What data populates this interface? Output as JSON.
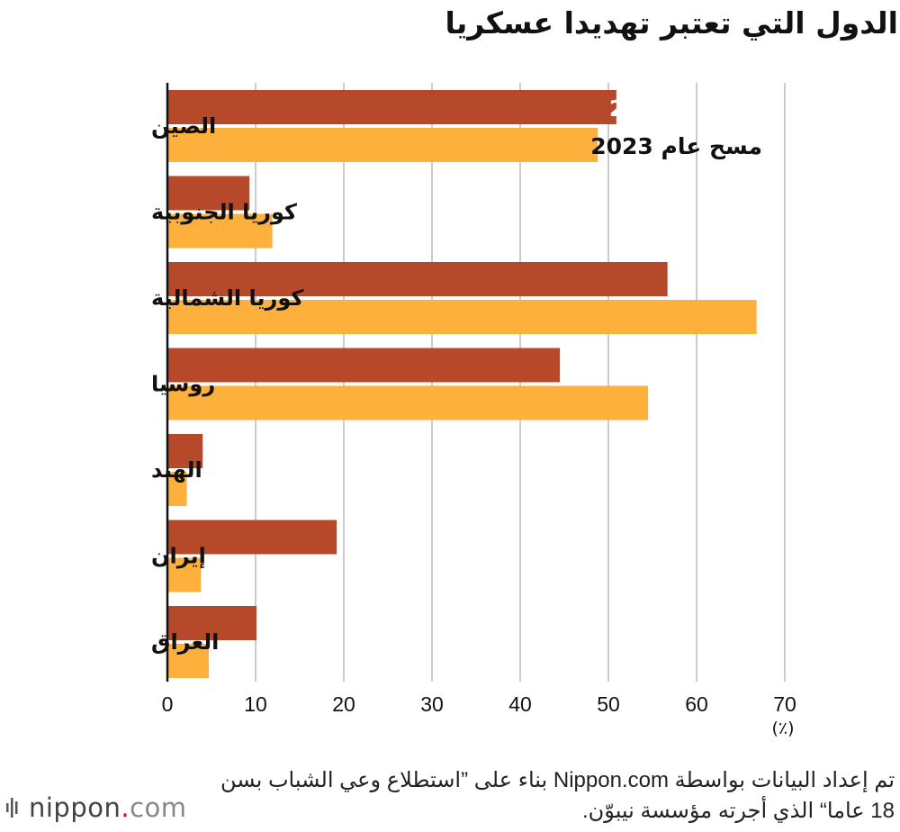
{
  "title": "الدول التي تعتبر تهديدا عسكريا",
  "colors": {
    "series_2026": "#b5492a",
    "series_2023": "#fdb13c",
    "grid": "#cccccc",
    "axis": "#111111"
  },
  "chart_data": {
    "type": "bar",
    "orientation": "horizontal",
    "title": "الدول التي تعتبر تهديدا عسكريا",
    "categories": [
      "الصين",
      "كوريا الجنوبية",
      "كوريا الشمالية",
      "روسيا",
      "الهند",
      "إيران",
      "العراق"
    ],
    "series": [
      {
        "name": "مسح عام 2026",
        "values": [
          50.9,
          9.3,
          56.7,
          44.5,
          4.0,
          19.2,
          10.1
        ]
      },
      {
        "name": "مسح عام 2023",
        "values": [
          48.8,
          11.9,
          66.8,
          54.5,
          2.2,
          3.8,
          4.7
        ]
      }
    ],
    "xlim": [
      0,
      70
    ],
    "xticks": [
      0,
      10,
      20,
      30,
      40,
      50,
      60,
      70
    ],
    "xunit": "(٪)",
    "grid": true,
    "legend": "inside-first-bars"
  },
  "source": "تم إعداد البيانات بواسطة Nippon.com بناء على ”استطلاع وعي الشباب بسن 18 عاما“ الذي أجرته مؤسسة نيبوّن.",
  "logo": {
    "name": "nippon",
    "dot": ".",
    "tld": "com",
    "icon": "bars-icon"
  }
}
